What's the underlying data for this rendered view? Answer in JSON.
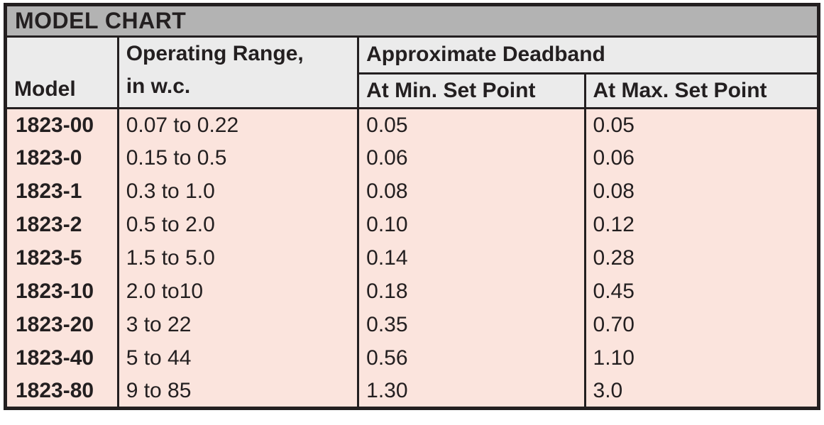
{
  "table": {
    "title": "MODEL CHART",
    "headers": {
      "model": "Model",
      "operating_range_line1": "Operating Range,",
      "operating_range_line2": "in w.c.",
      "deadband_group": "Approximate Deadband",
      "deadband_min": "At Min. Set Point",
      "deadband_max": "At Max. Set Point"
    },
    "rows": [
      {
        "model": "1823-00",
        "range": "0.07 to 0.22",
        "min_deadband": "0.05",
        "max_deadband": "0.05"
      },
      {
        "model": "1823-0",
        "range": "0.15 to 0.5",
        "min_deadband": "0.06",
        "max_deadband": "0.06"
      },
      {
        "model": "1823-1",
        "range": "0.3 to 1.0",
        "min_deadband": "0.08",
        "max_deadband": "0.08"
      },
      {
        "model": "1823-2",
        "range": "0.5 to 2.0",
        "min_deadband": "0.10",
        "max_deadband": "0.12"
      },
      {
        "model": "1823-5",
        "range": "1.5 to 5.0",
        "min_deadband": "0.14",
        "max_deadband": "0.28"
      },
      {
        "model": "1823-10",
        "range": "2.0 to10",
        "min_deadband": "0.18",
        "max_deadband": "0.45"
      },
      {
        "model": "1823-20",
        "range": "3 to 22",
        "min_deadband": "0.35",
        "max_deadband": "0.70"
      },
      {
        "model": "1823-40",
        "range": "5 to 44",
        "min_deadband": "0.56",
        "max_deadband": "1.10"
      },
      {
        "model": "1823-80",
        "range": "9 to 85",
        "min_deadband": "1.30",
        "max_deadband": "3.0"
      }
    ]
  },
  "colors": {
    "title_bar_bg": "#b3b3b3",
    "header_bg": "#ebebeb",
    "body_bg": "#fbe4dd",
    "border": "#231f20",
    "text": "#231f20"
  }
}
